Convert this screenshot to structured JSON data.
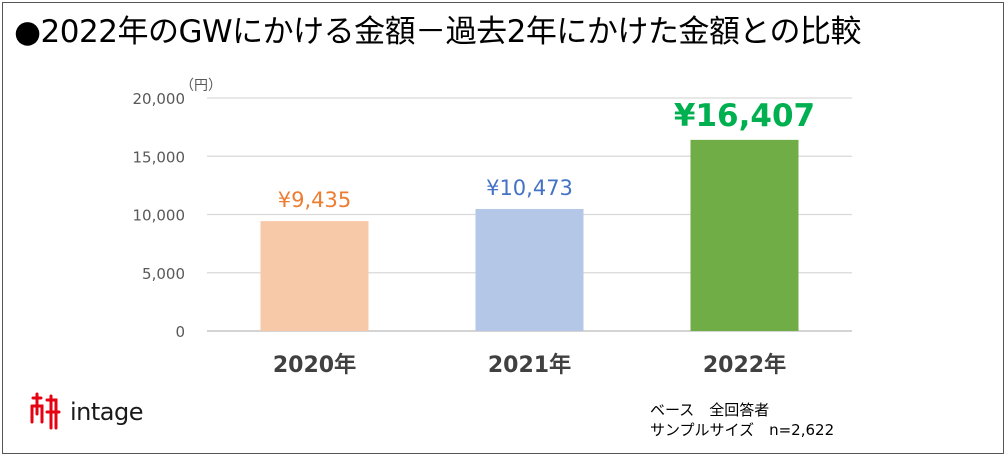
{
  "title": "●2022年のGWにかける金額－過去2年にかけた金額との比較",
  "logo_text": "intage",
  "note": {
    "base": "ベース　全回答者",
    "sample": "サンプルサイズ　n=2,622"
  },
  "chart_data": {
    "type": "bar",
    "title": "●2022年のGWにかける金額－過去2年にかけた金額との比較",
    "unit_label": "（円）",
    "categories": [
      "2020年",
      "2021年",
      "2022年"
    ],
    "values": [
      9435,
      10473,
      16407
    ],
    "data_labels": [
      "¥9,435",
      "¥10,473",
      "¥16,407"
    ],
    "colors": [
      "#f8c9a9",
      "#b4c7e7",
      "#70ad47"
    ],
    "label_colors": [
      "#ed7d31",
      "#4472c4",
      "#00b050"
    ],
    "ylim": [
      0,
      20000
    ],
    "yticks": [
      "0",
      "5,000",
      "10,000",
      "15,000",
      "20,000"
    ],
    "grid": true,
    "legend": "none"
  }
}
